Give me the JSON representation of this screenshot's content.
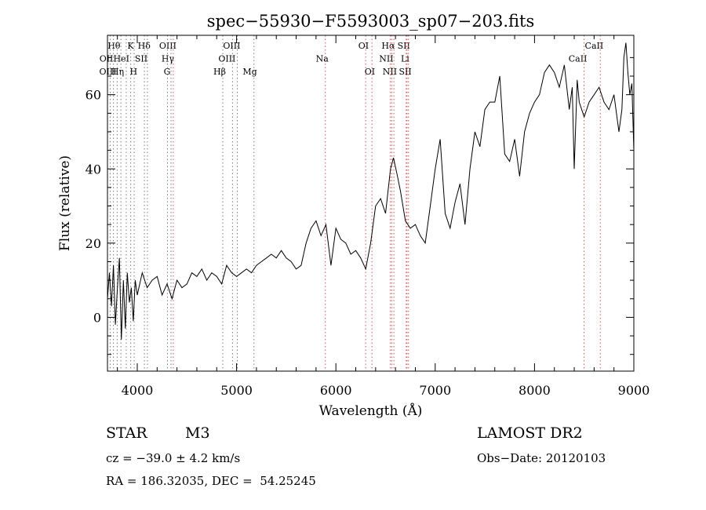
{
  "chart_data": {
    "type": "line",
    "title": "spec−55930−F5593003_sp07−203.fits",
    "xlabel": "Wavelength (Å)",
    "ylabel": "Flux (relative)",
    "xlim": [
      3700,
      9000
    ],
    "ylim": [
      -14.5,
      76
    ],
    "x_ticks": [
      4000,
      5000,
      6000,
      7000,
      8000,
      9000
    ],
    "x_tick_labels": [
      "4000",
      "5000",
      "6000",
      "7000",
      "8000",
      "9000"
    ],
    "y_ticks": [
      0,
      20,
      40,
      60
    ],
    "y_tick_labels": [
      "0",
      "20",
      "40",
      "60"
    ],
    "grid": false,
    "legend": "none",
    "series": [
      {
        "x": [
          3700,
          3720,
          3740,
          3760,
          3780,
          3800,
          3820,
          3840,
          3860,
          3880,
          3900,
          3920,
          3940,
          3960,
          3980,
          4000,
          4050,
          4100,
          4150,
          4200,
          4250,
          4300,
          4350,
          4400,
          4450,
          4500,
          4550,
          4600,
          4650,
          4700,
          4750,
          4800,
          4850,
          4900,
          4950,
          5000,
          5050,
          5100,
          5150,
          5200,
          5250,
          5300,
          5350,
          5400,
          5450,
          5500,
          5550,
          5600,
          5650,
          5700,
          5750,
          5800,
          5850,
          5900,
          5950,
          6000,
          6050,
          6100,
          6150,
          6200,
          6250,
          6300,
          6350,
          6400,
          6450,
          6500,
          6550,
          6580,
          6620,
          6650,
          6700,
          6750,
          6800,
          6850,
          6900,
          6950,
          7000,
          7050,
          7100,
          7150,
          7200,
          7250,
          7300,
          7350,
          7400,
          7450,
          7500,
          7550,
          7600,
          7650,
          7700,
          7750,
          7800,
          7850,
          7900,
          7950,
          8000,
          8050,
          8100,
          8150,
          8200,
          8250,
          8300,
          8350,
          8380,
          8400,
          8430,
          8450,
          8500,
          8550,
          8600,
          8650,
          8700,
          8750,
          8800,
          8850,
          8880,
          8900,
          8920,
          8940,
          8960,
          8980,
          9000
        ],
        "y": [
          5,
          12,
          3,
          14,
          -2,
          8,
          16,
          -6,
          10,
          -3,
          12,
          4,
          8,
          -1,
          10,
          6,
          12,
          8,
          10,
          11,
          6,
          9,
          5,
          10,
          8,
          9,
          12,
          11,
          13,
          10,
          12,
          11,
          9,
          14,
          12,
          11,
          12,
          13,
          12,
          14,
          15,
          16,
          17,
          16,
          18,
          16,
          15,
          13,
          14,
          20,
          24,
          26,
          22,
          25,
          14,
          24,
          21,
          20,
          17,
          18,
          16,
          13,
          20,
          30,
          32,
          28,
          40,
          43,
          38,
          34,
          26,
          24,
          25,
          22,
          20,
          30,
          40,
          48,
          28,
          24,
          31,
          36,
          25,
          40,
          50,
          46,
          56,
          58,
          58,
          65,
          44,
          42,
          48,
          38,
          50,
          55,
          58,
          60,
          66,
          68,
          66,
          62,
          68,
          56,
          62,
          40,
          64,
          58,
          54,
          58,
          60,
          62,
          58,
          56,
          60,
          50,
          56,
          70,
          74,
          66,
          60,
          63,
          45
        ]
      }
    ],
    "line_markers": [
      {
        "label": "Hθ",
        "x": 3798,
        "row": 0,
        "align": "end",
        "color": "#7a7a7a"
      },
      {
        "label": "K",
        "x": 3934,
        "row": 0,
        "align": "end",
        "color": "#7a7a7a"
      },
      {
        "label": "Hδ",
        "x": 4102,
        "row": 0,
        "align": "end",
        "color": "#7a7a7a"
      },
      {
        "label": "OII",
        "x": 3727,
        "row": 1,
        "align": "end",
        "color": "#7a7a7a"
      },
      {
        "label": "HeI",
        "x": 3889,
        "row": 1,
        "align": "end",
        "color": "#7a7a7a"
      },
      {
        "label": "SII",
        "x": 4072,
        "row": 1,
        "align": "end",
        "color": "#7a7a7a"
      },
      {
        "label": "OIII",
        "x": 3760,
        "row": 2,
        "align": "end",
        "color": "#7a7a7a"
      },
      {
        "label": "Hη",
        "x": 3835,
        "row": 2,
        "align": "end",
        "color": "#7a7a7a"
      },
      {
        "label": "H",
        "x": 3969,
        "row": 2,
        "align": "end",
        "color": "#7a7a7a"
      },
      {
        "label": "OIII",
        "x": 4363,
        "row": 0,
        "align": "end",
        "color": "#d9534f"
      },
      {
        "label": "Hγ",
        "x": 4340,
        "row": 1,
        "align": "end",
        "color": "#7a7a7a"
      },
      {
        "label": "G",
        "x": 4304,
        "row": 2,
        "align": "end",
        "color": "#7a7a7a"
      },
      {
        "label": "Hβ",
        "x": 4861,
        "row": 2,
        "align": "end",
        "color": "#7a7a7a"
      },
      {
        "label": "OIII",
        "x": 5007,
        "row": 0,
        "align": "end",
        "color": "#7a7a7a"
      },
      {
        "label": "OIII",
        "x": 4959,
        "row": 1,
        "align": "end",
        "color": "#7a7a7a"
      },
      {
        "label": "Mg",
        "x": 5175,
        "row": 2,
        "align": "end",
        "color": "#7a7a7a"
      },
      {
        "label": "Na",
        "x": 5894,
        "row": 1,
        "align": "end",
        "color": "#d9534f"
      },
      {
        "label": "OI",
        "x": 6300,
        "row": 0,
        "align": "end",
        "color": "#d9534f"
      },
      {
        "label": "OI",
        "x": 6363,
        "row": 2,
        "align": "end",
        "color": "#d9534f"
      },
      {
        "label": "Hα",
        "x": 6563,
        "row": 0,
        "align": "end",
        "color": "#d9534f"
      },
      {
        "label": "SII",
        "x": 6716,
        "row": 0,
        "align": "end",
        "color": "#d9534f"
      },
      {
        "label": "NII",
        "x": 6548,
        "row": 1,
        "align": "end",
        "color": "#d9534f"
      },
      {
        "label": "Li",
        "x": 6708,
        "row": 1,
        "align": "end",
        "color": "#d9534f"
      },
      {
        "label": "NII",
        "x": 6584,
        "row": 2,
        "align": "end",
        "color": "#d9534f"
      },
      {
        "label": "SII",
        "x": 6731,
        "row": 2,
        "align": "end",
        "color": "#d9534f"
      },
      {
        "label": "CaII",
        "x": 8662,
        "row": 0,
        "align": "end",
        "color": "#d9534f"
      },
      {
        "label": "CaII",
        "x": 8498,
        "row": 1,
        "align": "end",
        "color": "#d9534f"
      }
    ]
  },
  "info": {
    "star_class": "STAR",
    "subclass": "M3",
    "survey": "LAMOST DR2",
    "cz": "cz = −39.0 ± 4.2 km/s",
    "obs_date": "Obs−Date: 20120103",
    "radec": "RA = 186.32035, DEC =  54.25245"
  }
}
